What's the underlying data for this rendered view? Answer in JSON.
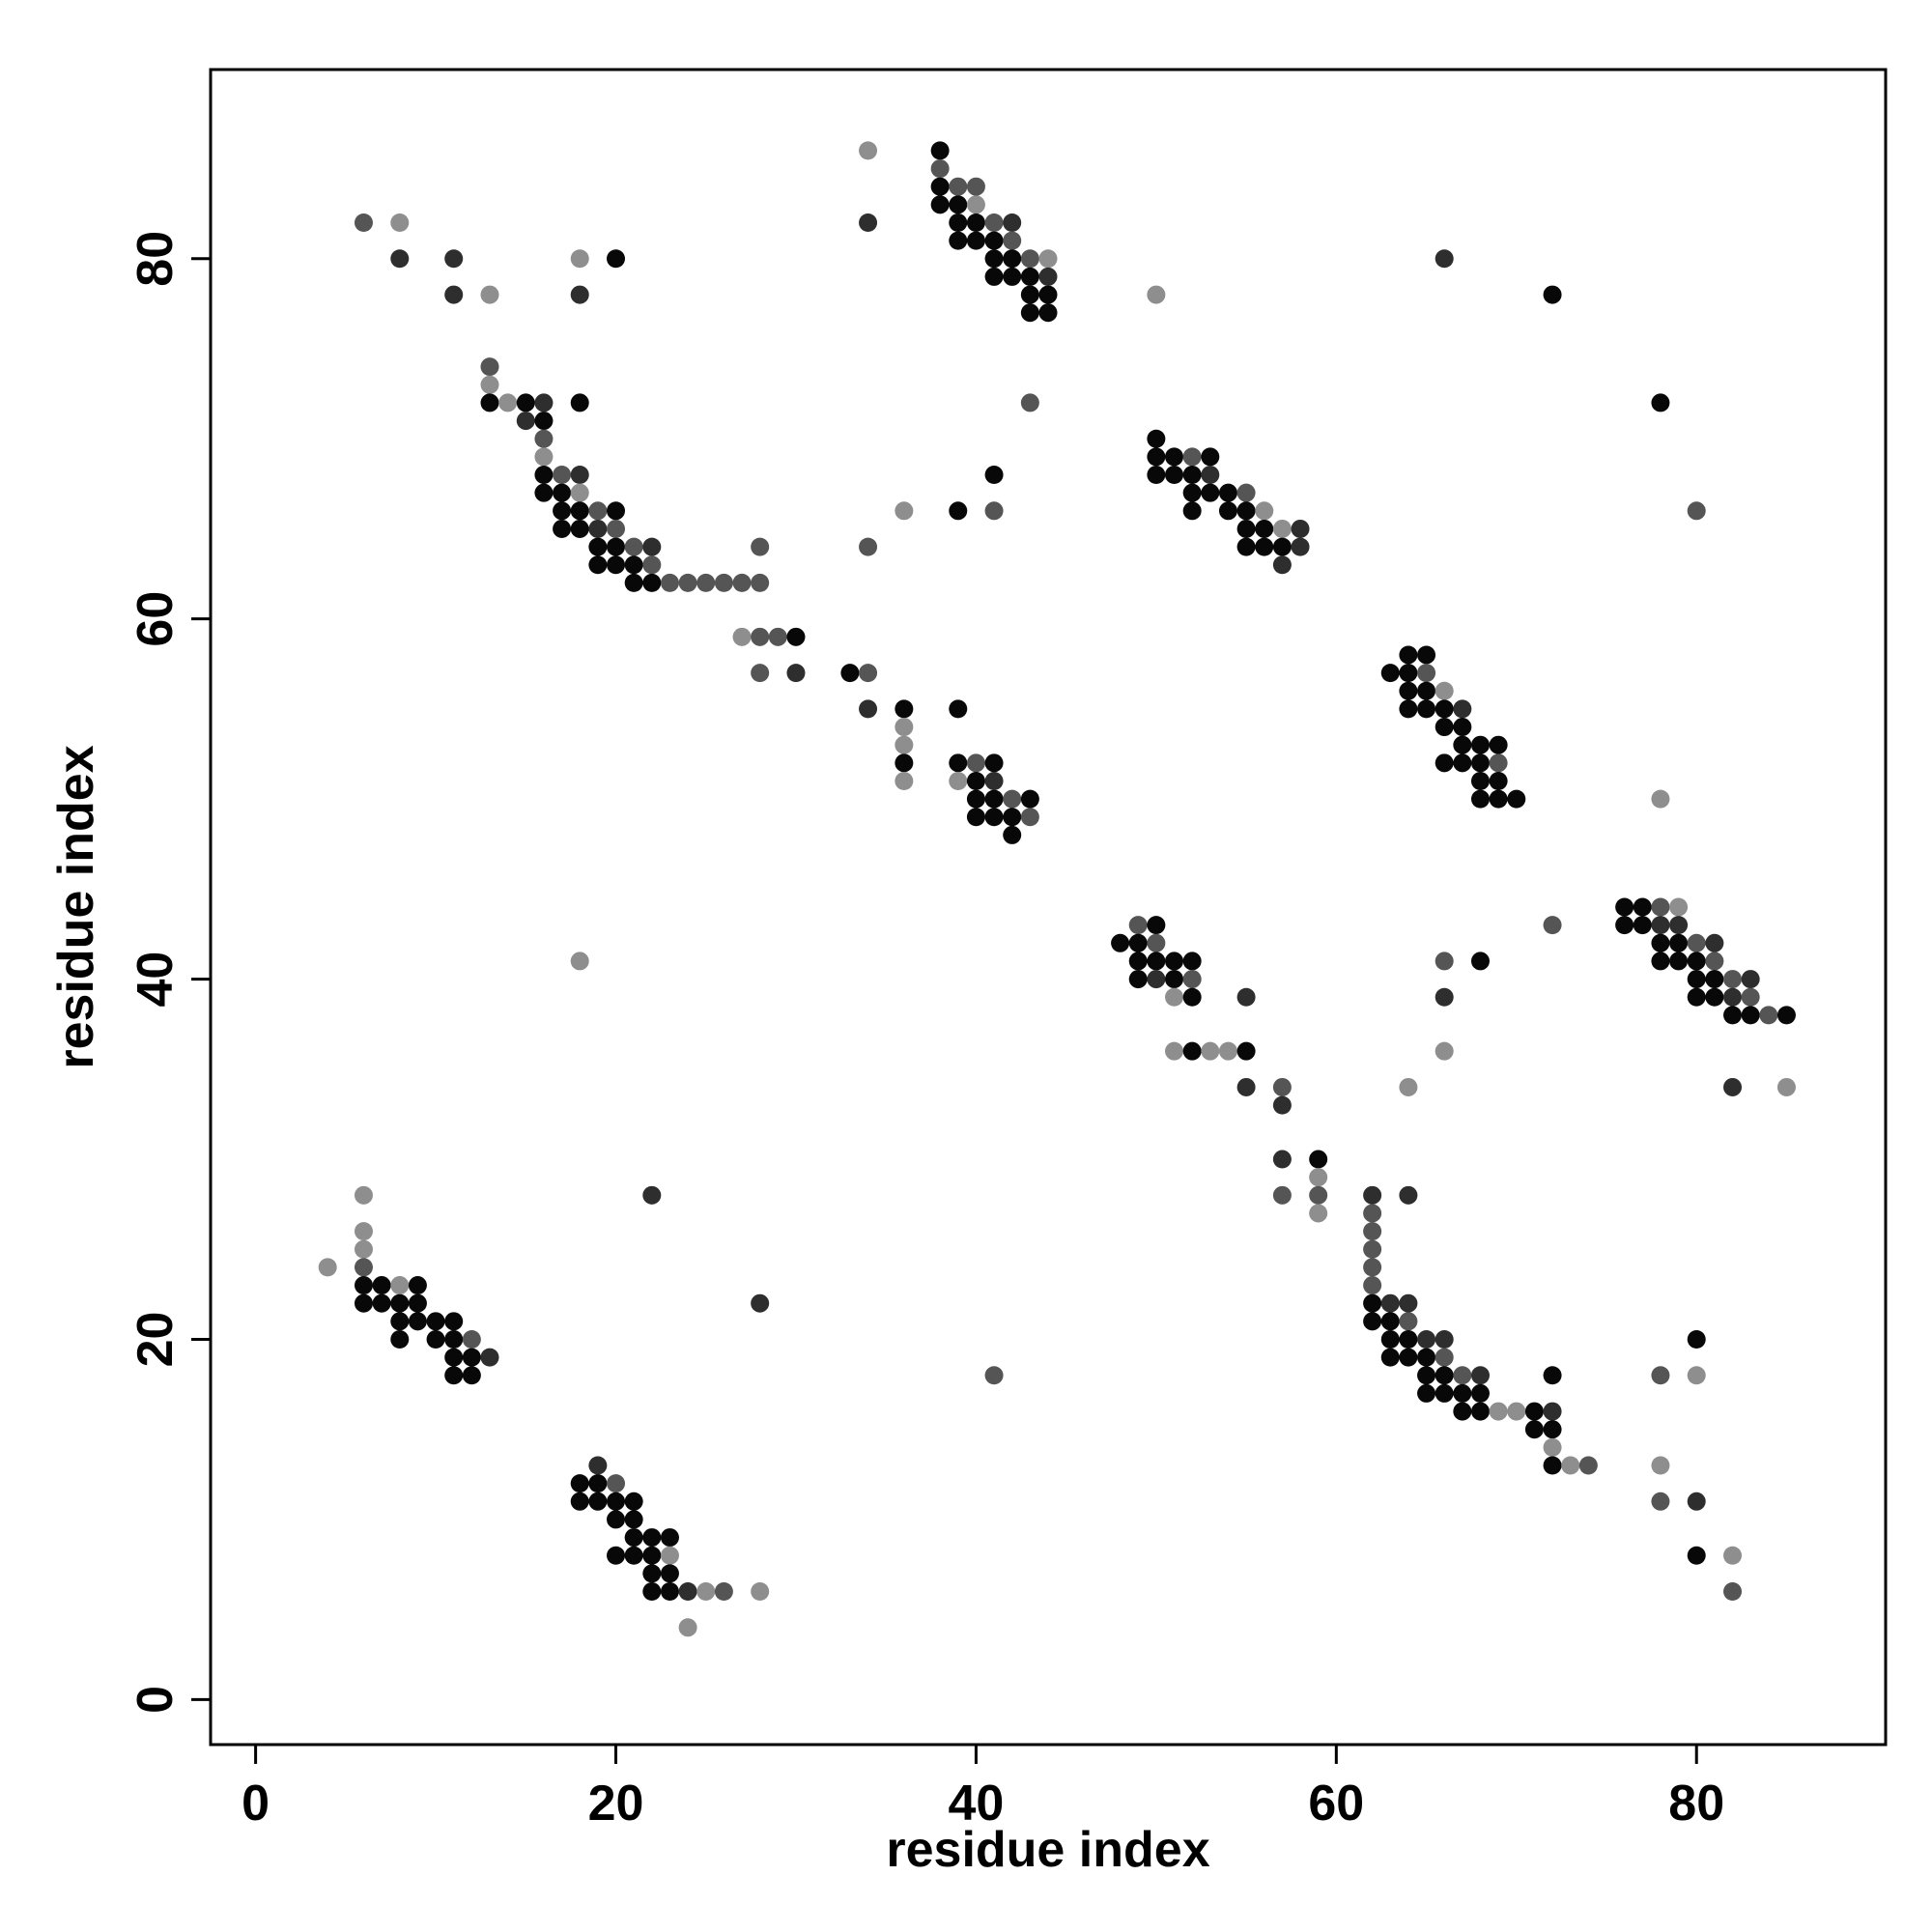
{
  "chart_data": {
    "type": "scatter",
    "title": "",
    "xlabel": "residue index",
    "ylabel": "residue index",
    "xlim": [
      -2.5,
      90.5
    ],
    "ylim": [
      -2.5,
      90.5
    ],
    "xticks": [
      0,
      20,
      40,
      60,
      80
    ],
    "yticks": [
      0,
      20,
      40,
      60,
      80
    ],
    "grid": false,
    "legend": "none",
    "point_colors": {
      "1": "#080808",
      "2": "#2e2e2e",
      "3": "#555555",
      "4": "#8e8e8e"
    },
    "points": [
      [
        6,
        82,
        3
      ],
      [
        8,
        82,
        4
      ],
      [
        8,
        80,
        2
      ],
      [
        11,
        80,
        2
      ],
      [
        11,
        78,
        2
      ],
      [
        13,
        78,
        4
      ],
      [
        18,
        80,
        4
      ],
      [
        18,
        78,
        2
      ],
      [
        20,
        80,
        1
      ],
      [
        13,
        74,
        3
      ],
      [
        13,
        73,
        4
      ],
      [
        13,
        72,
        1
      ],
      [
        14,
        72,
        4
      ],
      [
        15,
        72,
        1
      ],
      [
        15,
        71,
        2
      ],
      [
        16,
        72,
        2
      ],
      [
        16,
        71,
        1
      ],
      [
        16,
        70,
        3
      ],
      [
        16,
        69,
        4
      ],
      [
        18,
        72,
        1
      ],
      [
        16,
        68,
        1
      ],
      [
        16,
        67,
        1
      ],
      [
        17,
        68,
        3
      ],
      [
        17,
        67,
        1
      ],
      [
        18,
        68,
        2
      ],
      [
        18,
        67,
        4
      ],
      [
        17,
        66,
        1
      ],
      [
        17,
        65,
        1
      ],
      [
        18,
        66,
        1
      ],
      [
        18,
        65,
        1
      ],
      [
        19,
        66,
        3
      ],
      [
        19,
        65,
        2
      ],
      [
        20,
        66,
        1
      ],
      [
        20,
        65,
        3
      ],
      [
        19,
        64,
        1
      ],
      [
        19,
        63,
        1
      ],
      [
        20,
        64,
        1
      ],
      [
        20,
        63,
        1
      ],
      [
        21,
        64,
        3
      ],
      [
        21,
        63,
        1
      ],
      [
        22,
        64,
        2
      ],
      [
        22,
        63,
        3
      ],
      [
        21,
        62,
        1
      ],
      [
        22,
        62,
        1
      ],
      [
        23,
        62,
        3
      ],
      [
        24,
        62,
        3
      ],
      [
        25,
        62,
        3
      ],
      [
        26,
        62,
        3
      ],
      [
        27,
        62,
        3
      ],
      [
        28,
        62,
        3
      ],
      [
        28,
        64,
        3
      ],
      [
        27,
        59,
        4
      ],
      [
        28,
        59,
        3
      ],
      [
        29,
        59,
        3
      ],
      [
        30,
        59,
        1
      ],
      [
        28,
        57,
        3
      ],
      [
        30,
        57,
        2
      ],
      [
        33,
        57,
        1
      ],
      [
        34,
        57,
        3
      ],
      [
        34,
        55,
        2
      ],
      [
        36,
        55,
        1
      ],
      [
        36,
        54,
        4
      ],
      [
        36,
        53,
        4
      ],
      [
        36,
        52,
        1
      ],
      [
        36,
        51,
        4
      ],
      [
        39,
        55,
        1
      ],
      [
        39,
        52,
        1
      ],
      [
        39,
        51,
        4
      ],
      [
        40,
        52,
        3
      ],
      [
        40,
        51,
        1
      ],
      [
        41,
        52,
        1
      ],
      [
        41,
        51,
        2
      ],
      [
        40,
        50,
        1
      ],
      [
        40,
        49,
        1
      ],
      [
        41,
        50,
        1
      ],
      [
        41,
        49,
        1
      ],
      [
        42,
        50,
        3
      ],
      [
        42,
        49,
        1
      ],
      [
        42,
        48,
        1
      ],
      [
        43,
        50,
        1
      ],
      [
        43,
        49,
        3
      ],
      [
        34,
        86,
        4
      ],
      [
        34,
        82,
        2
      ],
      [
        38,
        86,
        1
      ],
      [
        38,
        85,
        3
      ],
      [
        38,
        84,
        1
      ],
      [
        38,
        83,
        1
      ],
      [
        39,
        84,
        3
      ],
      [
        39,
        83,
        1
      ],
      [
        40,
        84,
        3
      ],
      [
        40,
        83,
        4
      ],
      [
        39,
        82,
        1
      ],
      [
        39,
        81,
        1
      ],
      [
        40,
        82,
        1
      ],
      [
        40,
        81,
        1
      ],
      [
        41,
        82,
        3
      ],
      [
        41,
        81,
        1
      ],
      [
        42,
        82,
        2
      ],
      [
        42,
        81,
        3
      ],
      [
        41,
        80,
        1
      ],
      [
        41,
        79,
        1
      ],
      [
        42,
        80,
        1
      ],
      [
        42,
        79,
        1
      ],
      [
        43,
        80,
        3
      ],
      [
        43,
        79,
        1
      ],
      [
        44,
        80,
        4
      ],
      [
        44,
        79,
        2
      ],
      [
        43,
        78,
        1
      ],
      [
        43,
        77,
        1
      ],
      [
        44,
        78,
        1
      ],
      [
        44,
        77,
        1
      ],
      [
        43,
        72,
        3
      ],
      [
        34,
        64,
        3
      ],
      [
        36,
        66,
        4
      ],
      [
        39,
        66,
        1
      ],
      [
        41,
        66,
        3
      ],
      [
        41,
        68,
        1
      ],
      [
        50,
        78,
        4
      ],
      [
        50,
        70,
        1
      ],
      [
        50,
        69,
        1
      ],
      [
        50,
        68,
        1
      ],
      [
        51,
        69,
        1
      ],
      [
        51,
        68,
        1
      ],
      [
        52,
        69,
        3
      ],
      [
        52,
        68,
        1
      ],
      [
        53,
        69,
        1
      ],
      [
        53,
        68,
        2
      ],
      [
        52,
        67,
        1
      ],
      [
        53,
        67,
        1
      ],
      [
        52,
        66,
        1
      ],
      [
        54,
        67,
        1
      ],
      [
        54,
        66,
        1
      ],
      [
        55,
        67,
        3
      ],
      [
        55,
        66,
        1
      ],
      [
        56,
        66,
        4
      ],
      [
        55,
        65,
        1
      ],
      [
        56,
        65,
        1
      ],
      [
        57,
        65,
        4
      ],
      [
        58,
        65,
        2
      ],
      [
        55,
        64,
        1
      ],
      [
        56,
        64,
        1
      ],
      [
        57,
        64,
        1
      ],
      [
        58,
        64,
        2
      ],
      [
        57,
        63,
        2
      ],
      [
        63,
        57,
        1
      ],
      [
        64,
        58,
        1
      ],
      [
        65,
        58,
        1
      ],
      [
        64,
        57,
        1
      ],
      [
        65,
        57,
        3
      ],
      [
        64,
        56,
        1
      ],
      [
        65,
        56,
        1
      ],
      [
        66,
        56,
        4
      ],
      [
        64,
        55,
        1
      ],
      [
        65,
        55,
        1
      ],
      [
        66,
        55,
        1
      ],
      [
        67,
        55,
        2
      ],
      [
        66,
        54,
        1
      ],
      [
        67,
        54,
        1
      ],
      [
        67,
        53,
        1
      ],
      [
        68,
        53,
        1
      ],
      [
        69,
        53,
        1
      ],
      [
        66,
        52,
        1
      ],
      [
        67,
        52,
        1
      ],
      [
        68,
        52,
        1
      ],
      [
        69,
        52,
        3
      ],
      [
        68,
        51,
        1
      ],
      [
        69,
        51,
        1
      ],
      [
        68,
        50,
        1
      ],
      [
        69,
        50,
        1
      ],
      [
        70,
        50,
        1
      ],
      [
        78,
        50,
        4
      ],
      [
        66,
        80,
        2
      ],
      [
        72,
        78,
        1
      ],
      [
        78,
        72,
        1
      ],
      [
        80,
        66,
        3
      ],
      [
        48,
        42,
        1
      ],
      [
        49,
        43,
        3
      ],
      [
        50,
        43,
        1
      ],
      [
        49,
        42,
        1
      ],
      [
        50,
        42,
        3
      ],
      [
        49,
        41,
        1
      ],
      [
        50,
        41,
        1
      ],
      [
        51,
        41,
        1
      ],
      [
        52,
        41,
        1
      ],
      [
        49,
        40,
        1
      ],
      [
        50,
        40,
        2
      ],
      [
        51,
        40,
        1
      ],
      [
        52,
        40,
        3
      ],
      [
        51,
        39,
        4
      ],
      [
        52,
        39,
        1
      ],
      [
        55,
        39,
        2
      ],
      [
        51,
        36,
        4
      ],
      [
        52,
        36,
        1
      ],
      [
        53,
        36,
        4
      ],
      [
        54,
        36,
        4
      ],
      [
        55,
        36,
        1
      ],
      [
        55,
        34,
        2
      ],
      [
        57,
        34,
        3
      ],
      [
        57,
        33,
        2
      ],
      [
        57,
        30,
        2
      ],
      [
        59,
        30,
        1
      ],
      [
        59,
        29,
        4
      ],
      [
        57,
        28,
        3
      ],
      [
        59,
        28,
        3
      ],
      [
        59,
        27,
        4
      ],
      [
        76,
        44,
        1
      ],
      [
        77,
        44,
        1
      ],
      [
        78,
        44,
        3
      ],
      [
        79,
        44,
        4
      ],
      [
        76,
        43,
        1
      ],
      [
        77,
        43,
        1
      ],
      [
        78,
        43,
        2
      ],
      [
        79,
        43,
        2
      ],
      [
        78,
        42,
        1
      ],
      [
        79,
        42,
        1
      ],
      [
        80,
        42,
        3
      ],
      [
        81,
        42,
        2
      ],
      [
        78,
        41,
        1
      ],
      [
        79,
        41,
        1
      ],
      [
        80,
        41,
        1
      ],
      [
        81,
        41,
        3
      ],
      [
        80,
        40,
        1
      ],
      [
        81,
        40,
        1
      ],
      [
        82,
        40,
        3
      ],
      [
        83,
        40,
        2
      ],
      [
        80,
        39,
        1
      ],
      [
        81,
        39,
        1
      ],
      [
        82,
        39,
        2
      ],
      [
        83,
        39,
        3
      ],
      [
        82,
        38,
        1
      ],
      [
        83,
        38,
        1
      ],
      [
        84,
        38,
        3
      ],
      [
        85,
        38,
        1
      ],
      [
        82,
        34,
        2
      ],
      [
        85,
        34,
        4
      ],
      [
        72,
        43,
        3
      ],
      [
        66,
        41,
        3
      ],
      [
        68,
        41,
        1
      ],
      [
        66,
        39,
        2
      ],
      [
        66,
        36,
        4
      ],
      [
        64,
        34,
        4
      ],
      [
        18,
        41,
        4
      ],
      [
        4,
        24,
        4
      ],
      [
        6,
        28,
        4
      ],
      [
        6,
        26,
        4
      ],
      [
        6,
        25,
        4
      ],
      [
        6,
        24,
        3
      ],
      [
        6,
        23,
        1
      ],
      [
        7,
        23,
        1
      ],
      [
        8,
        23,
        4
      ],
      [
        9,
        23,
        1
      ],
      [
        6,
        22,
        1
      ],
      [
        7,
        22,
        1
      ],
      [
        8,
        22,
        1
      ],
      [
        9,
        22,
        1
      ],
      [
        8,
        21,
        1
      ],
      [
        9,
        21,
        1
      ],
      [
        10,
        21,
        1
      ],
      [
        11,
        21,
        1
      ],
      [
        8,
        20,
        1
      ],
      [
        10,
        20,
        1
      ],
      [
        11,
        20,
        1
      ],
      [
        12,
        20,
        3
      ],
      [
        11,
        19,
        1
      ],
      [
        12,
        19,
        1
      ],
      [
        13,
        19,
        2
      ],
      [
        11,
        18,
        1
      ],
      [
        12,
        18,
        1
      ],
      [
        22,
        28,
        2
      ],
      [
        28,
        22,
        2
      ],
      [
        41,
        18,
        3
      ],
      [
        19,
        13,
        2
      ],
      [
        18,
        12,
        1
      ],
      [
        19,
        12,
        1
      ],
      [
        20,
        12,
        3
      ],
      [
        18,
        11,
        1
      ],
      [
        19,
        11,
        1
      ],
      [
        20,
        11,
        1
      ],
      [
        21,
        11,
        1
      ],
      [
        20,
        10,
        1
      ],
      [
        21,
        10,
        1
      ],
      [
        21,
        9,
        1
      ],
      [
        22,
        9,
        1
      ],
      [
        23,
        9,
        1
      ],
      [
        20,
        8,
        1
      ],
      [
        21,
        8,
        1
      ],
      [
        22,
        8,
        1
      ],
      [
        23,
        8,
        4
      ],
      [
        22,
        7,
        1
      ],
      [
        23,
        7,
        1
      ],
      [
        22,
        6,
        1
      ],
      [
        23,
        6,
        1
      ],
      [
        24,
        6,
        2
      ],
      [
        25,
        6,
        4
      ],
      [
        26,
        6,
        3
      ],
      [
        28,
        6,
        4
      ],
      [
        24,
        4,
        4
      ],
      [
        62,
        28,
        2
      ],
      [
        62,
        27,
        3
      ],
      [
        62,
        26,
        3
      ],
      [
        62,
        25,
        3
      ],
      [
        62,
        24,
        3
      ],
      [
        62,
        23,
        3
      ],
      [
        64,
        28,
        2
      ],
      [
        62,
        22,
        1
      ],
      [
        63,
        22,
        2
      ],
      [
        64,
        22,
        2
      ],
      [
        62,
        21,
        1
      ],
      [
        63,
        21,
        1
      ],
      [
        64,
        21,
        3
      ],
      [
        63,
        20,
        1
      ],
      [
        64,
        20,
        1
      ],
      [
        65,
        20,
        2
      ],
      [
        66,
        20,
        2
      ],
      [
        63,
        19,
        1
      ],
      [
        64,
        19,
        1
      ],
      [
        65,
        19,
        1
      ],
      [
        66,
        19,
        3
      ],
      [
        65,
        18,
        1
      ],
      [
        66,
        18,
        1
      ],
      [
        67,
        18,
        3
      ],
      [
        68,
        18,
        2
      ],
      [
        65,
        17,
        1
      ],
      [
        66,
        17,
        1
      ],
      [
        67,
        17,
        1
      ],
      [
        68,
        17,
        1
      ],
      [
        67,
        16,
        1
      ],
      [
        68,
        16,
        1
      ],
      [
        69,
        16,
        4
      ],
      [
        70,
        16,
        4
      ],
      [
        71,
        16,
        1
      ],
      [
        71,
        15,
        1
      ],
      [
        72,
        16,
        2
      ],
      [
        72,
        15,
        1
      ],
      [
        72,
        14,
        4
      ],
      [
        72,
        13,
        1
      ],
      [
        73,
        13,
        4
      ],
      [
        74,
        13,
        3
      ],
      [
        72,
        18,
        1
      ],
      [
        78,
        18,
        3
      ],
      [
        80,
        20,
        1
      ],
      [
        80,
        18,
        4
      ],
      [
        78,
        13,
        4
      ],
      [
        78,
        11,
        3
      ],
      [
        80,
        11,
        2
      ],
      [
        80,
        8,
        1
      ],
      [
        82,
        8,
        4
      ],
      [
        82,
        6,
        3
      ]
    ]
  }
}
